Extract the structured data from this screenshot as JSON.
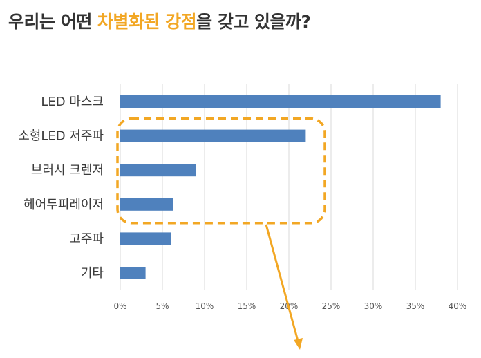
{
  "headline": {
    "pre": "우리는 어떤 ",
    "highlight": "차별화된 강점",
    "post": "을 갖고 있을까?"
  },
  "colors": {
    "bar": "#4f81bd",
    "highlight": "#f2a724",
    "text": "#333333",
    "grid": "#d9d9d9"
  },
  "chart_data": {
    "type": "bar",
    "orientation": "horizontal",
    "categories": [
      "LED 마스크",
      "소형LED 저주파",
      "브러시 크렌저",
      "헤어두피레이저",
      "고주파",
      "기타"
    ],
    "values": [
      38,
      22,
      9,
      6.3,
      6,
      3
    ],
    "xlim": [
      0,
      40
    ],
    "xticks": [
      "0%",
      "5%",
      "10%",
      "15%",
      "20%",
      "25%",
      "30%",
      "35%",
      "40%"
    ],
    "grid": true,
    "legend": "none",
    "callout": {
      "categories": [
        "소형LED 저주파",
        "브러시 크렌저",
        "헤어두피레이저"
      ],
      "style": "dashed-rounded-box",
      "arrow": "down"
    }
  }
}
